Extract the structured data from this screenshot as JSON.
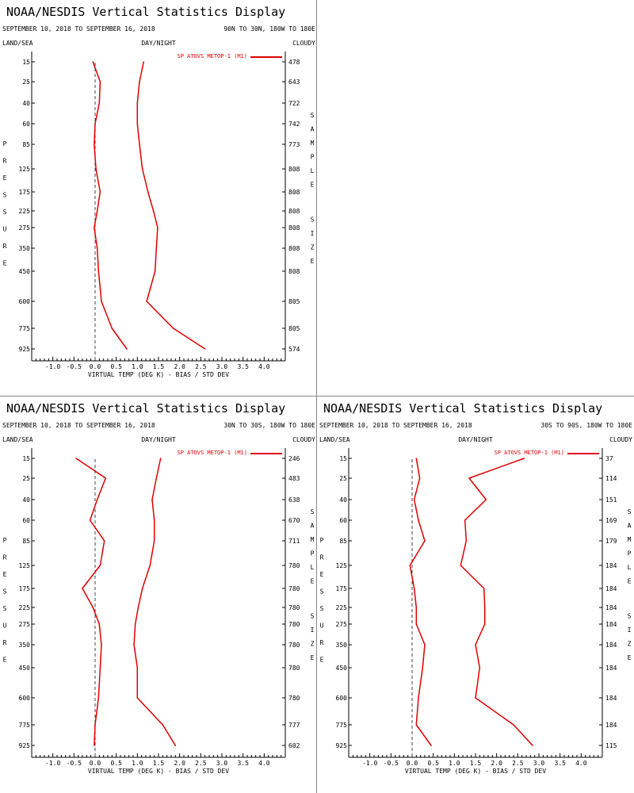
{
  "colors": {
    "series": "#e00000",
    "axis": "#000000",
    "zero_line": "#444444"
  },
  "chart_data": [
    {
      "type": "line",
      "title": "NOAA/NESDIS Vertical Statistics Display",
      "date_range": "SEPTEMBER 10, 2018 TO SEPTEMBER 16, 2018",
      "region": "90N TO 30N, 180W TO 180E",
      "top_left_label": "LAND/SEA",
      "top_center_label": "DAY/NIGHT",
      "top_right_label": "CLOUDY",
      "left_label": "PRESSURE",
      "right_label": "SAMPLE SIZE",
      "xlabel": "VIRTUAL TEMP (DEG K) - BIAS / STD DEV",
      "xlim": [
        -1.5,
        4.5
      ],
      "xticks": [
        "-1.0",
        "-0.5",
        "0.0",
        "0.5",
        "1.0",
        "1.5",
        "2.0",
        "2.5",
        "3.0",
        "3.5",
        "4.0"
      ],
      "pressure_levels": [
        "15",
        "25",
        "40",
        "60",
        "85",
        "125",
        "175",
        "225",
        "275",
        "350",
        "450",
        "600",
        "775",
        "925"
      ],
      "sample_size": [
        "478",
        "643",
        "722",
        "742",
        "773",
        "808",
        "808",
        "808",
        "808",
        "808",
        "808",
        "805",
        "805",
        "574"
      ],
      "legend": "SP ATOVS METOP-1 (M1)",
      "series": [
        {
          "name": "bias",
          "values": [
            -0.05,
            0.12,
            0.1,
            0.0,
            -0.02,
            0.02,
            0.12,
            0.05,
            -0.02,
            0.05,
            0.08,
            0.15,
            0.4,
            0.75
          ]
        },
        {
          "name": "std_dev",
          "values": [
            1.15,
            1.05,
            1.0,
            1.0,
            1.05,
            1.12,
            1.25,
            1.38,
            1.48,
            1.45,
            1.42,
            1.22,
            1.85,
            2.6
          ]
        }
      ]
    },
    {
      "type": "line",
      "title": "NOAA/NESDIS Vertical Statistics Display",
      "date_range": "SEPTEMBER 10, 2018 TO SEPTEMBER 16, 2018",
      "region": "30N TO 30S, 180W TO 180E",
      "top_left_label": "LAND/SEA",
      "top_center_label": "DAY/NIGHT",
      "top_right_label": "CLOUDY",
      "left_label": "PRESSURE",
      "right_label": "SAMPLE SIZE",
      "xlabel": "VIRTUAL TEMP (DEG K) - BIAS / STD DEV",
      "xlim": [
        -1.5,
        4.5
      ],
      "xticks": [
        "-1.0",
        "-0.5",
        "0.0",
        "0.5",
        "1.0",
        "1.5",
        "2.0",
        "2.5",
        "3.0",
        "3.5",
        "4.0"
      ],
      "pressure_levels": [
        "15",
        "25",
        "40",
        "60",
        "85",
        "125",
        "175",
        "225",
        "275",
        "350",
        "450",
        "600",
        "775",
        "925"
      ],
      "sample_size": [
        "246",
        "483",
        "638",
        "670",
        "711",
        "780",
        "780",
        "780",
        "780",
        "780",
        "780",
        "780",
        "777",
        "602"
      ],
      "legend": "SP ATOVS METOP-1 (M1)",
      "series": [
        {
          "name": "bias",
          "values": [
            -0.45,
            0.25,
            0.05,
            -0.12,
            0.22,
            0.12,
            -0.3,
            -0.05,
            0.1,
            0.15,
            0.12,
            0.08,
            0.0,
            -0.02
          ]
        },
        {
          "name": "std_dev",
          "values": [
            1.55,
            1.45,
            1.35,
            1.4,
            1.4,
            1.3,
            1.12,
            1.02,
            0.95,
            0.92,
            1.0,
            1.0,
            1.6,
            1.9
          ]
        }
      ]
    },
    {
      "type": "line",
      "title": "NOAA/NESDIS Vertical Statistics Display",
      "date_range": "SEPTEMBER 10, 2018 TO SEPTEMBER 16, 2018",
      "region": "30S TO 90S, 180W TO 180E",
      "top_left_label": "LAND/SEA",
      "top_center_label": "DAY/NIGHT",
      "top_right_label": "CLOUDY",
      "left_label": "PRESSURE",
      "right_label": "SAMPLE SIZE",
      "xlabel": "VIRTUAL TEMP (DEG K) - BIAS / STD DEV",
      "xlim": [
        -1.5,
        4.5
      ],
      "xticks": [
        "-1.0",
        "-0.5",
        "0.0",
        "0.5",
        "1.0",
        "1.5",
        "2.0",
        "2.5",
        "3.0",
        "3.5",
        "4.0"
      ],
      "pressure_levels": [
        "15",
        "25",
        "40",
        "60",
        "85",
        "125",
        "175",
        "225",
        "275",
        "350",
        "450",
        "600",
        "775",
        "925"
      ],
      "sample_size": [
        "37",
        "114",
        "151",
        "169",
        "179",
        "184",
        "184",
        "184",
        "184",
        "184",
        "184",
        "184",
        "184",
        "115"
      ],
      "legend": "SP ATOVS METOP-1 (M1)",
      "series": [
        {
          "name": "bias",
          "values": [
            0.1,
            0.18,
            0.05,
            0.15,
            0.3,
            -0.05,
            0.05,
            0.1,
            0.1,
            0.3,
            0.25,
            0.15,
            0.1,
            0.45
          ]
        },
        {
          "name": "std_dev",
          "values": [
            2.65,
            1.35,
            1.75,
            1.25,
            1.28,
            1.15,
            1.7,
            1.72,
            1.72,
            1.5,
            1.6,
            1.5,
            2.4,
            2.85
          ]
        }
      ]
    }
  ]
}
